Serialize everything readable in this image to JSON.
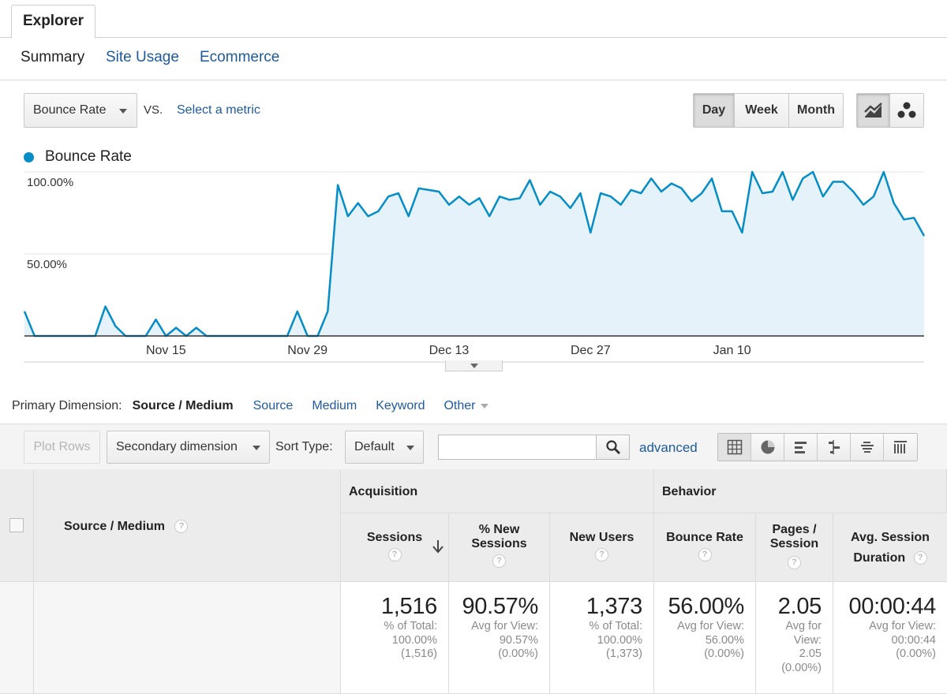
{
  "tabs": {
    "explorer": "Explorer"
  },
  "subtabs": {
    "summary": "Summary",
    "site_usage": "Site Usage",
    "ecommerce": "Ecommerce"
  },
  "controls": {
    "metric": "Bounce Rate",
    "vs": "VS.",
    "select_metric": "Select a metric",
    "period": [
      "Day",
      "Week",
      "Month"
    ],
    "active_period": "Day",
    "views": [
      "line-chart-icon",
      "motion-chart-icon"
    ]
  },
  "legend": {
    "label": "Bounce Rate",
    "color": "#058dc7"
  },
  "chart_data": {
    "type": "area",
    "series": [
      {
        "name": "Bounce Rate",
        "color": "#058dc7",
        "values": [
          15,
          0,
          0,
          0,
          0,
          0,
          0,
          0,
          18,
          6,
          0,
          0,
          0,
          10,
          0,
          5,
          0,
          5,
          0,
          0,
          0,
          0,
          0,
          0,
          0,
          0,
          0,
          15,
          0,
          0,
          15,
          92,
          73,
          81,
          73,
          76,
          85,
          87,
          73,
          90,
          89,
          88,
          80,
          85,
          80,
          84,
          73,
          85,
          83,
          84,
          95,
          80,
          88,
          85,
          78,
          87,
          63,
          87,
          85,
          80,
          89,
          87,
          96,
          88,
          93,
          90,
          82,
          87,
          96,
          76,
          76,
          63,
          100,
          87,
          88,
          100,
          83,
          96,
          100,
          85,
          94,
          94,
          88,
          80,
          85,
          100,
          81,
          71,
          72,
          61
        ]
      }
    ],
    "yticks": [
      "50.00%",
      "100.00%"
    ],
    "xticks": [
      "Nov 15",
      "Nov 29",
      "Dec 13",
      "Dec 27",
      "Jan 10"
    ],
    "ylim": [
      0,
      100
    ],
    "grid": true
  },
  "dimension": {
    "label": "Primary Dimension:",
    "active": "Source / Medium",
    "links": [
      "Source",
      "Medium",
      "Keyword"
    ],
    "other": "Other"
  },
  "toolbar": {
    "plot_rows": "Plot Rows",
    "secondary": "Secondary dimension",
    "sort_label": "Sort Type:",
    "sort_value": "Default",
    "advanced": "advanced",
    "views": [
      "table-view-icon",
      "pie-view-icon",
      "performance-view-icon",
      "comparison-view-icon",
      "term-cloud-icon",
      "pivot-view-icon"
    ]
  },
  "table": {
    "dim_header": "Source / Medium",
    "groups": [
      "Acquisition",
      "Behavior"
    ],
    "columns": [
      {
        "line1": "Sessions",
        "line2": "",
        "value": "1,516",
        "sub": [
          "% of Total:",
          "100.00%",
          "(1,516)"
        ]
      },
      {
        "line1": "% New",
        "line2": "Sessions",
        "value": "90.57%",
        "sub": [
          "Avg for View:",
          "90.57%",
          "(0.00%)"
        ]
      },
      {
        "line1": "New Users",
        "line2": "",
        "value": "1,373",
        "sub": [
          "% of Total:",
          "100.00%",
          "(1,373)"
        ]
      },
      {
        "line1": "Bounce Rate",
        "line2": "",
        "value": "56.00%",
        "sub": [
          "Avg for View:",
          "56.00%",
          "(0.00%)"
        ]
      },
      {
        "line1": "Pages /",
        "line2": "Session",
        "value": "2.05",
        "sub": [
          "Avg for",
          "View:",
          "2.05",
          "(0.00%)"
        ]
      },
      {
        "line1": "Avg. Session",
        "line2": "Duration",
        "value": "00:00:44",
        "sub": [
          "Avg for View:",
          "00:00:44",
          "(0.00%)"
        ]
      }
    ]
  }
}
